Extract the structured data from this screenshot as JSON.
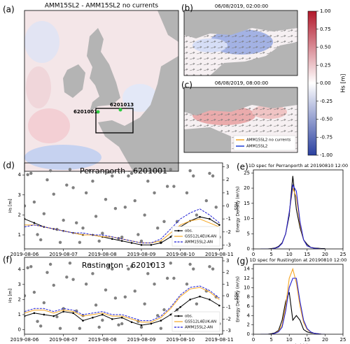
{
  "maps": {
    "a": {
      "label": "(a)",
      "title": "AMM15SL2 - AMM15SL2 no currents",
      "stations": [
        "6201001",
        "6201013"
      ]
    },
    "b": {
      "label": "(b)",
      "title": "06/08/2019, 02:00:00"
    },
    "c": {
      "label": "(c)",
      "title": "06/08/2019, 08:00:00",
      "legend": [
        "AMM15SL2 no currents",
        "AMM15SL2"
      ],
      "legend_colors": [
        "#f5a623",
        "#1f3fd6"
      ]
    }
  },
  "chart_data": [
    {
      "type": "colorbar",
      "ylabel": "Hs [m]",
      "ylim": [
        -1,
        1
      ],
      "colors": [
        "#2a40a0",
        "#ffffff",
        "#b2182b"
      ],
      "yticks": [
        {
          "value": 1,
          "label": "1.00"
        },
        {
          "value": 0.75,
          "label": "0.75"
        },
        {
          "value": 0.5,
          "label": "0.50"
        },
        {
          "value": 0.25,
          "label": "0.25"
        },
        {
          "value": 0,
          "label": "0.00"
        },
        {
          "value": -0.25,
          "label": "-0.25"
        },
        {
          "value": -0.5,
          "label": "-0.50"
        },
        {
          "value": -0.75,
          "label": "-0.75"
        },
        {
          "value": -1,
          "label": "-1.00"
        }
      ]
    },
    {
      "type": "line",
      "panel": "(d)",
      "title": "Perranporth - 6201001",
      "ylabel": "Hs [m]",
      "y2label": "SSH",
      "legend": "lower right",
      "xlim": [
        0,
        122
      ],
      "xticks": [
        {
          "value": 0,
          "label": "2019-08-06"
        },
        {
          "value": 24,
          "label": "2019-08-07"
        },
        {
          "value": 48,
          "label": "2019-08-08"
        },
        {
          "value": 72,
          "label": "2019-08-09"
        },
        {
          "value": 96,
          "label": "2019-08-10"
        },
        {
          "value": 120,
          "label": "2019-08-11"
        }
      ],
      "ylim": [
        0.3,
        4.6
      ],
      "yticks": [
        1,
        2,
        3,
        4
      ],
      "y2lim": [
        -3.3,
        3.3
      ],
      "y2ticks": [
        -3,
        -2,
        -1,
        0,
        1,
        2,
        3
      ],
      "series": [
        {
          "axis": "y2",
          "color": "#808080",
          "marker": "big",
          "line": false,
          "x": [
            0,
            2,
            4,
            6,
            8,
            10,
            12,
            14,
            16,
            18,
            20,
            22,
            24,
            26,
            28,
            30,
            32,
            34,
            36,
            38,
            40,
            42,
            44,
            46,
            48,
            50,
            52,
            54,
            56,
            58,
            60,
            62,
            64,
            66,
            68,
            70,
            72,
            74,
            76,
            78,
            80,
            82,
            84,
            86,
            88,
            90,
            92,
            94,
            96,
            98,
            100,
            102,
            104,
            106,
            108,
            110,
            112,
            114,
            116,
            118,
            120
          ],
          "values": [
            0,
            2.4,
            2.5,
            0.3,
            -2.2,
            -2.6,
            -0.6,
            2.0,
            2.7,
            0.9,
            -1.8,
            -2.8,
            -1.1,
            1.6,
            2.8,
            1.4,
            -1.3,
            -2.8,
            -1.7,
            1.0,
            2.7,
            1.9,
            -0.8,
            -2.7,
            -2.1,
            0.5,
            2.6,
            2.3,
            -0.2,
            -2.5,
            -2.4,
            -0.1,
            2.3,
            2.5,
            0.4,
            -2.2,
            -2.7,
            -0.7,
            1.9,
            2.7,
            1.0,
            -1.7,
            -2.8,
            -1.2,
            1.5,
            2.8,
            1.5,
            -1.2,
            -2.8,
            -1.7,
            1.0,
            2.7,
            2.3,
            -0.7,
            -2.7,
            -2.2,
            0.4,
            2.5,
            2.3,
            -0.1,
            -2.4
          ]
        },
        {
          "name": "obs.",
          "color": "#000000",
          "marker": "small",
          "x": [
            0,
            6,
            12,
            18,
            24,
            30,
            36,
            42,
            48,
            54,
            60,
            66,
            72,
            78,
            84,
            90,
            96,
            102,
            108,
            114,
            120
          ],
          "values": [
            1.8,
            1.6,
            1.4,
            1.3,
            1.2,
            1.1,
            1.0,
            1.0,
            0.9,
            0.8,
            0.7,
            0.6,
            0.5,
            0.5,
            0.6,
            0.9,
            1.4,
            1.7,
            1.9,
            1.8,
            1.5
          ]
        },
        {
          "name": "GS512L4EUK-AN",
          "color": "#f5a623",
          "x": [
            0,
            6,
            12,
            18,
            24,
            30,
            36,
            42,
            48,
            54,
            60,
            66,
            72,
            78,
            84,
            90,
            96,
            102,
            108,
            114,
            120
          ],
          "values": [
            1.5,
            1.5,
            1.4,
            1.3,
            1.2,
            1.1,
            1.0,
            1.0,
            0.9,
            0.9,
            0.8,
            0.7,
            0.6,
            0.6,
            0.7,
            1.1,
            1.5,
            1.7,
            1.8,
            1.6,
            1.4
          ]
        },
        {
          "name": "AMM15SL2-AN",
          "color": "#1f1fd6",
          "dash": true,
          "x": [
            0,
            6,
            12,
            18,
            24,
            30,
            36,
            42,
            48,
            54,
            60,
            66,
            72,
            78,
            84,
            90,
            96,
            102,
            108,
            114,
            120
          ],
          "values": [
            1.4,
            1.5,
            1.4,
            1.3,
            1.2,
            1.1,
            1.1,
            1.0,
            1.0,
            0.9,
            0.8,
            0.7,
            0.6,
            0.6,
            0.8,
            1.3,
            1.8,
            2.1,
            2.3,
            2.0,
            1.6
          ]
        }
      ]
    },
    {
      "type": "line",
      "panel": "(e)",
      "title": "1D spec for Perranporth at 20190810 12:00",
      "ylabel": "Energy Density (m²/s)",
      "xlim": [
        0,
        25
      ],
      "xticks": [
        0,
        5,
        10,
        15,
        20,
        25
      ],
      "ylim": [
        0,
        26
      ],
      "yticks": [
        0,
        5,
        10,
        15,
        20,
        25
      ],
      "series": [
        {
          "color": "#000000",
          "x": [
            2,
            3,
            4,
            5,
            6,
            7,
            8,
            9,
            10,
            11,
            12,
            13,
            14,
            15,
            16,
            17,
            18,
            19,
            20
          ],
          "values": [
            0,
            0,
            0,
            0.1,
            0.3,
            0.8,
            2,
            5,
            11,
            24,
            13,
            7,
            3,
            1.5,
            0.5,
            0.3,
            0.2,
            0.1,
            0.1
          ]
        },
        {
          "color": "#f5a623",
          "x": [
            2,
            3,
            4,
            5,
            6,
            7,
            8,
            9,
            10,
            11,
            12,
            13,
            14,
            15,
            16,
            17,
            18,
            19,
            20
          ],
          "values": [
            0,
            0,
            0,
            0,
            0.2,
            0.6,
            1.8,
            5,
            12,
            20,
            17,
            8,
            3,
            1,
            0.5,
            0.2,
            0.1,
            0,
            0
          ]
        },
        {
          "color": "#1f1fd6",
          "x": [
            2,
            3,
            4,
            5,
            6,
            7,
            8,
            9,
            10,
            11,
            12,
            13,
            14,
            15,
            16,
            17,
            18,
            19,
            20
          ],
          "values": [
            0,
            0,
            0,
            0,
            0.2,
            0.6,
            1.8,
            5,
            12,
            21,
            19,
            9,
            3,
            1,
            0.5,
            0.2,
            0.1,
            0,
            0
          ]
        }
      ]
    },
    {
      "type": "line",
      "panel": "(f)",
      "title": "Rustington - 6201013",
      "ylabel": "Hs [m]",
      "y2label": "SSH",
      "legend": "lower right",
      "xlim": [
        0,
        122
      ],
      "xticks": [
        {
          "value": 0,
          "label": "2019-08-06"
        },
        {
          "value": 24,
          "label": "2019-08-07"
        },
        {
          "value": 48,
          "label": "2019-08-08"
        },
        {
          "value": 72,
          "label": "2019-08-09"
        },
        {
          "value": 96,
          "label": "2019-08-10"
        },
        {
          "value": 120,
          "label": "2019-08-11"
        }
      ],
      "ylim": [
        -0.3,
        4.8
      ],
      "yticks": [
        0,
        1,
        2,
        3,
        4
      ],
      "y2lim": [
        -3.3,
        3.3
      ],
      "y2ticks": [
        -3,
        -2,
        -1,
        0,
        1,
        2,
        3
      ],
      "series": [
        {
          "axis": "y2",
          "color": "#808080",
          "marker": "big",
          "line": false,
          "x": [
            0,
            2,
            4,
            6,
            8,
            10,
            12,
            14,
            16,
            18,
            20,
            22,
            24,
            26,
            28,
            30,
            32,
            34,
            36,
            38,
            40,
            42,
            44,
            46,
            48,
            50,
            52,
            54,
            56,
            58,
            60,
            62,
            64,
            66,
            68,
            70,
            72,
            74,
            76,
            78,
            80,
            82,
            84,
            86,
            88,
            90,
            92,
            94,
            96,
            98,
            100,
            102,
            104,
            106,
            108,
            110,
            112,
            114,
            116,
            118,
            120
          ],
          "values": [
            0,
            2.4,
            2.5,
            0.3,
            -2.2,
            -2.6,
            -0.6,
            2.0,
            2.7,
            0.9,
            -1.8,
            -2.8,
            -1.1,
            1.6,
            2.8,
            1.4,
            -1.3,
            -2.8,
            -1.7,
            1.0,
            2.7,
            1.9,
            -0.8,
            -2.7,
            -2.1,
            0.5,
            2.6,
            2.3,
            -0.2,
            -2.5,
            -2.4,
            -0.1,
            2.3,
            2.5,
            0.4,
            -2.2,
            -2.7,
            -0.7,
            1.9,
            2.7,
            1.0,
            -1.7,
            -2.8,
            -1.2,
            1.5,
            2.8,
            1.5,
            -1.2,
            -2.8,
            -1.7,
            1.0,
            2.7,
            2.3,
            -0.7,
            -2.7,
            -2.2,
            0.4,
            2.5,
            2.3,
            -0.1,
            -2.4
          ]
        },
        {
          "name": "obs.",
          "color": "#000000",
          "marker": "small",
          "x": [
            0,
            6,
            12,
            18,
            24,
            30,
            36,
            42,
            48,
            54,
            60,
            66,
            72,
            78,
            84,
            90,
            96,
            102,
            108,
            114,
            120
          ],
          "values": [
            0.9,
            1.1,
            1.0,
            0.9,
            1.2,
            1.1,
            0.6,
            0.8,
            1.0,
            0.7,
            0.8,
            0.5,
            0.3,
            0.4,
            0.6,
            1.0,
            1.5,
            2.0,
            2.2,
            2.0,
            1.6
          ]
        },
        {
          "name": "GS512L4EUK-AN",
          "color": "#f5a623",
          "x": [
            0,
            6,
            12,
            18,
            24,
            30,
            36,
            42,
            48,
            54,
            60,
            66,
            72,
            78,
            84,
            90,
            96,
            102,
            108,
            114,
            120
          ],
          "values": [
            1.1,
            1.3,
            1.3,
            1.1,
            1.3,
            1.2,
            0.9,
            1.0,
            1.1,
            0.9,
            0.9,
            0.7,
            0.5,
            0.5,
            0.8,
            1.4,
            2.2,
            2.7,
            2.8,
            2.5,
            2.0
          ]
        },
        {
          "name": "AMM15SL2-AN",
          "color": "#1f1fd6",
          "dash": true,
          "x": [
            0,
            6,
            12,
            18,
            24,
            30,
            36,
            42,
            48,
            54,
            60,
            66,
            72,
            78,
            84,
            90,
            96,
            102,
            108,
            114,
            120
          ],
          "values": [
            1.2,
            1.4,
            1.4,
            1.2,
            1.4,
            1.3,
            1.0,
            1.1,
            1.2,
            1.0,
            1.0,
            0.8,
            0.6,
            0.6,
            0.9,
            1.5,
            2.3,
            2.8,
            2.9,
            2.6,
            2.1
          ]
        }
      ]
    },
    {
      "type": "line",
      "panel": "(g)",
      "title": "1D spec for Rustington at 20190810 12:00",
      "ylabel": "Energy Density (m²/s)",
      "xlabel": "Period (s)",
      "xlim": [
        0,
        25
      ],
      "xticks": [
        0,
        5,
        10,
        15,
        20,
        25
      ],
      "ylim": [
        0,
        15
      ],
      "yticks": [
        0,
        2,
        4,
        6,
        8,
        10,
        12,
        14
      ],
      "series": [
        {
          "color": "#000000",
          "x": [
            2,
            3,
            4,
            5,
            6,
            7,
            8,
            9,
            10,
            11,
            12,
            13,
            14,
            15,
            16,
            17,
            18,
            19,
            20
          ],
          "values": [
            0,
            0,
            0,
            0.1,
            0.3,
            0.8,
            3,
            7,
            9,
            3,
            4,
            3,
            1,
            0.5,
            0.3,
            0.2,
            0.1,
            0,
            0
          ]
        },
        {
          "color": "#f5a623",
          "x": [
            2,
            3,
            4,
            5,
            6,
            7,
            8,
            9,
            10,
            11,
            12,
            13,
            14,
            15,
            16,
            17,
            18,
            19,
            20
          ],
          "values": [
            0,
            0,
            0,
            0,
            0.2,
            0.6,
            2,
            6,
            12,
            14,
            11,
            6,
            2.5,
            1,
            0.5,
            0.2,
            0.1,
            0,
            0
          ]
        },
        {
          "color": "#1f1fd6",
          "x": [
            2,
            3,
            4,
            5,
            6,
            7,
            8,
            9,
            10,
            11,
            12,
            13,
            14,
            15,
            16,
            17,
            18,
            19,
            20
          ],
          "values": [
            0,
            0,
            0,
            0,
            0.2,
            0.5,
            1.5,
            5,
            10,
            12,
            12,
            7,
            3,
            1.2,
            0.5,
            0.2,
            0.1,
            0,
            0
          ]
        }
      ]
    }
  ]
}
